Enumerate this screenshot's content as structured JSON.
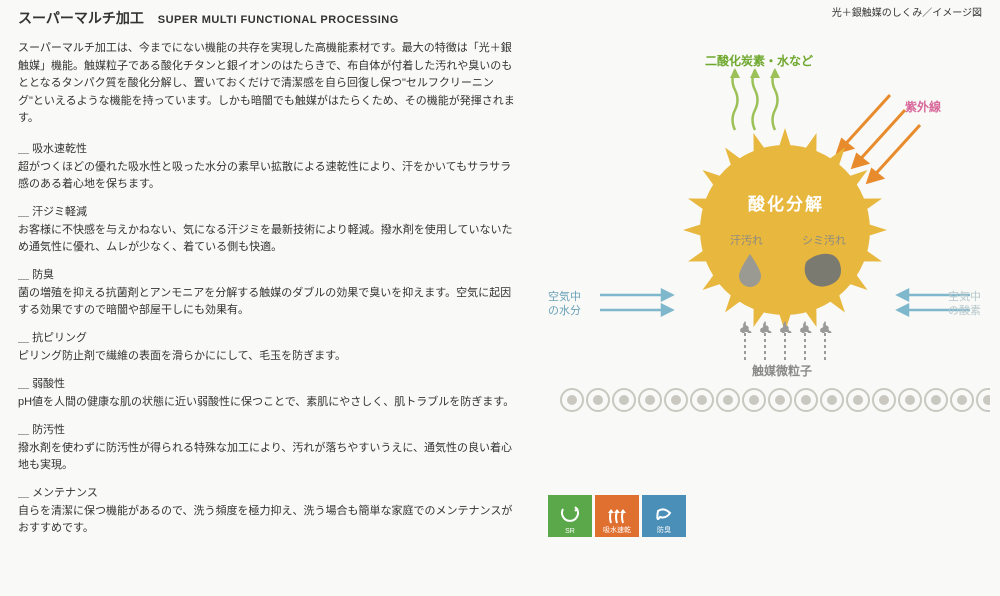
{
  "header": {
    "title_jp": "スーパーマルチ加工",
    "title_en": "SUPER MULTI FUNCTIONAL PROCESSING",
    "top_right": "光＋銀触媒のしくみ／イメージ図"
  },
  "intro": "スーパーマルチ加工は、今までにない機能の共存を実現した高機能素材です。最大の特徴は「光＋銀触媒」機能。触媒粒子である酸化チタンと銀イオンのはたらきで、布自体が付着した汚れや臭いのもととなるタンパク質を酸化分解し、置いておくだけで清潔感を自ら回復し保つ\"セルフクリーニング\"といえるような機能を持っています。しかも暗闇でも触媒がはたらくため、その機能が発揮されます。",
  "sections": [
    {
      "title": "吸水速乾性",
      "body": "超がつくほどの優れた吸水性と吸った水分の素早い拡散による速乾性により、汗をかいてもサラサラ感のある着心地を保ちます。"
    },
    {
      "title": "汗ジミ軽減",
      "body": "お客様に不快感を与えかねない、気になる汗ジミを最新技術により軽減。撥水剤を使用していないため通気性に優れ、ムレが少なく、着ている側も快適。"
    },
    {
      "title": "防臭",
      "body": "菌の増殖を抑える抗菌剤とアンモニアを分解する触媒のダブルの効果で臭いを抑えます。空気に起因する効果ですので暗闇や部屋干しにも効果有。"
    },
    {
      "title": "抗ピリング",
      "body": "ピリング防止剤で繊維の表面を滑らかににして、毛玉を防ぎます。"
    },
    {
      "title": "弱酸性",
      "body": "pH値を人間の健康な肌の状態に近い弱酸性に保つことで、素肌にやさしく、肌トラブルを防ぎます。"
    },
    {
      "title": "防汚性",
      "body": "撥水剤を使わずに防汚性が得られる特殊な加工により、汚れが落ちやすいうえに、通気性の良い着心地も実現。"
    },
    {
      "title": "メンテナンス",
      "body": "自らを清潔に保つ機能があるので、洗う頻度を極力抑え、洗う場合も簡単な家庭でのメンテナンスがおすすめです。"
    }
  ],
  "diagram": {
    "co2_label": "二酸化炭素・水など",
    "uv_label": "紫外線",
    "center_label": "酸化分解",
    "sweat_label": "汗汚れ",
    "stain_label": "シミ汚れ",
    "air_left_1": "空気中",
    "air_left_2": "の水分",
    "air_right_1": "空気中",
    "air_right_2": "の酸素",
    "catalyst_label": "触媒微粒子",
    "colors": {
      "sun": "#e8b73e",
      "sun_center_text": "#ffffff",
      "co2_text": "#6fa82e",
      "uv_text": "#d8689a",
      "uv_arrow": "#e88b2c",
      "air_text": "#6aa2b8",
      "air_arrow": "#7fb8cc",
      "catalyst_text": "#8a8a8a",
      "catalyst_arrow": "#9a9a9a",
      "stain_shape": "#8a8a82",
      "wavy_green": "#9bc158"
    }
  },
  "badges": [
    {
      "label": "SR",
      "bg": "#5aa84a"
    },
    {
      "label": "吸水速乾",
      "bg": "#e07030"
    },
    {
      "label": "防臭",
      "bg": "#4a8fb8"
    }
  ]
}
